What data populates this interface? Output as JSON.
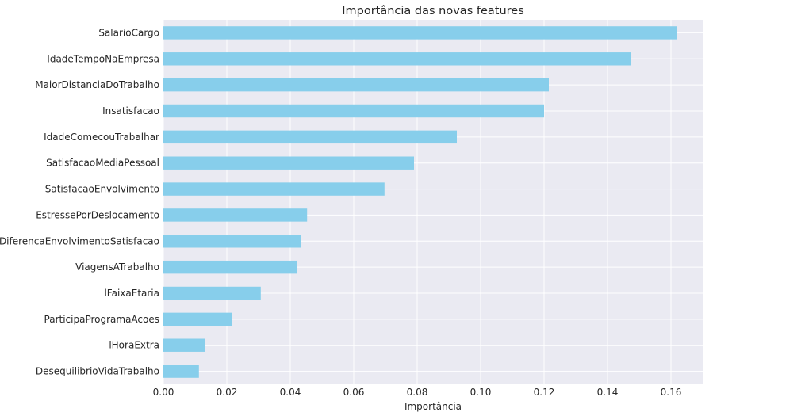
{
  "chart_data": {
    "type": "bar",
    "orientation": "horizontal",
    "title": "Importância das novas features",
    "xlabel": "Importância",
    "ylabel": "",
    "xlim": [
      0,
      0.17
    ],
    "xticks": [
      "0.00",
      "0.02",
      "0.04",
      "0.06",
      "0.08",
      "0.10",
      "0.12",
      "0.14",
      "0.16"
    ],
    "grid": true,
    "bar_color": "#87ceeb",
    "background_color": "#eaeaf2",
    "categories": [
      "SalarioCargo",
      "IdadeTempoNaEmpresa",
      "MaiorDistanciaDoTrabalho",
      "Insatisfacao",
      "IdadeComecouTrabalhar",
      "SatisfacaoMediaPessoal",
      "SatisfacaoEnvolvimento",
      "EstressePorDeslocamento",
      "DiferencaEnvolvimentoSatisfacao",
      "ViagensATrabalho",
      "lFaixaEtaria",
      "ParticipaProgramaAcoes",
      "lHoraExtra",
      "DesequilibrioVidaTrabalho"
    ],
    "values": [
      0.162,
      0.1475,
      0.1215,
      0.12,
      0.0925,
      0.079,
      0.0697,
      0.0453,
      0.0433,
      0.0422,
      0.0307,
      0.0215,
      0.013,
      0.0112
    ]
  }
}
